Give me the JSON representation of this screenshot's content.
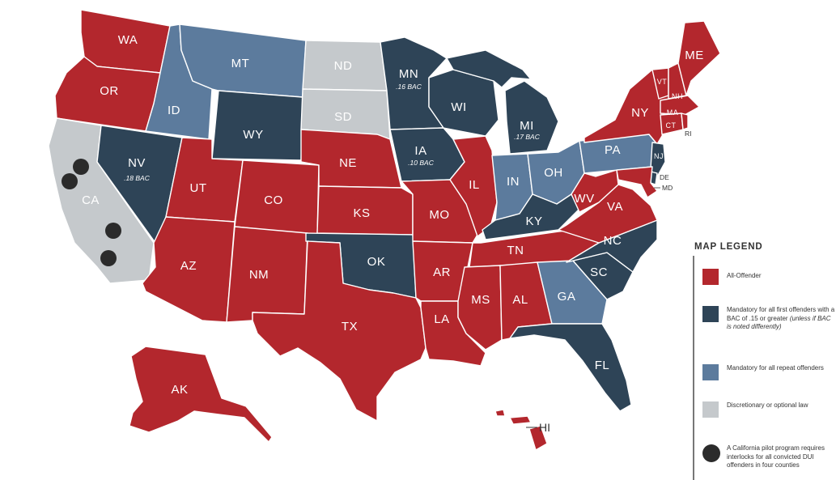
{
  "colors": {
    "all_offender": "#b3272d",
    "first_offender": "#2e4457",
    "repeat_offender": "#5c7b9d",
    "discretionary": "#c5c9cc",
    "pilot_dot": "#2b2b2b"
  },
  "states": {
    "WA": "WA",
    "OR": "OR",
    "CA": "CA",
    "ID": "ID",
    "NV": "NV",
    "MT": "MT",
    "WY": "WY",
    "UT": "UT",
    "AZ": "AZ",
    "CO": "CO",
    "NM": "NM",
    "ND": "ND",
    "SD": "SD",
    "NE": "NE",
    "KS": "KS",
    "OK": "OK",
    "TX": "TX",
    "MN": "MN",
    "IA": "IA",
    "MO": "MO",
    "AR": "AR",
    "LA": "LA",
    "WI": "WI",
    "IL": "IL",
    "MI": "MI",
    "IN": "IN",
    "OH": "OH",
    "KY": "KY",
    "TN": "TN",
    "MS": "MS",
    "AL": "AL",
    "GA": "GA",
    "FL": "FL",
    "SC": "SC",
    "NC": "NC",
    "VA": "VA",
    "WV": "WV",
    "PA": "PA",
    "NY": "NY",
    "ME": "ME",
    "VT": "VT",
    "NH": "NH",
    "MA": "MA",
    "CT": "CT",
    "RI": "RI",
    "NJ": "NJ",
    "DE": "DE",
    "MD": "MD",
    "AK": "AK",
    "HI": "HI"
  },
  "bac_notes": {
    "NV": ".18 BAC",
    "MN": ".16 BAC",
    "IA": ".10 BAC",
    "MI": ".17 BAC"
  },
  "legend": {
    "title": "MAP LEGEND",
    "all_offender": "All-Offender",
    "first_offender": "Mandatory for all first offenders with a BAC of .15 or greater",
    "first_offender_note": "(unless if BAC is noted differently)",
    "repeat_offender": "Mandatory for all repeat offenders",
    "discretionary": "Discretionary or optional law",
    "pilot": "A California pilot program requires interlocks for all convicted DUI offenders in four counties"
  }
}
